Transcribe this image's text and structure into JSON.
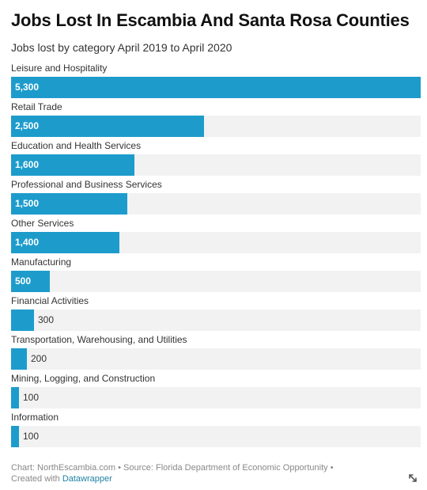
{
  "title": "Jobs Lost In Escambia And Santa Rosa Counties",
  "subtitle": "Jobs lost by category April 2019 to April 2020",
  "chart_data": {
    "type": "bar",
    "orientation": "horizontal",
    "title": "Jobs Lost In Escambia And Santa Rosa Counties",
    "subtitle": "Jobs lost by category April 2019 to April 2020",
    "categories": [
      "Leisure and Hospitality",
      "Retail Trade",
      "Education and Health Services",
      "Professional and Business Services",
      "Other Services",
      "Manufacturing",
      "Financial Activities",
      "Transportation, Warehousing, and Utilities",
      "Mining, Logging, and Construction",
      "Information"
    ],
    "values": [
      5300,
      2500,
      1600,
      1500,
      1400,
      500,
      300,
      200,
      100,
      100
    ],
    "value_labels": [
      "5,300",
      "2,500",
      "1,600",
      "1,500",
      "1,400",
      "500",
      "300",
      "200",
      "100",
      "100"
    ],
    "xlim": [
      0,
      5300
    ],
    "bar_color": "#1d9ccc",
    "track_color": "#f2f2f2",
    "grid": false
  },
  "footer": {
    "chart_credit": "Chart: NorthEscambia.com",
    "separator": " • ",
    "source": "Source: Florida Department of Economic Opportunity",
    "trailing": " •",
    "created_with": "Created with ",
    "tool": "Datawrapper"
  },
  "icons": {
    "resize": "resize-diagonal-icon"
  }
}
